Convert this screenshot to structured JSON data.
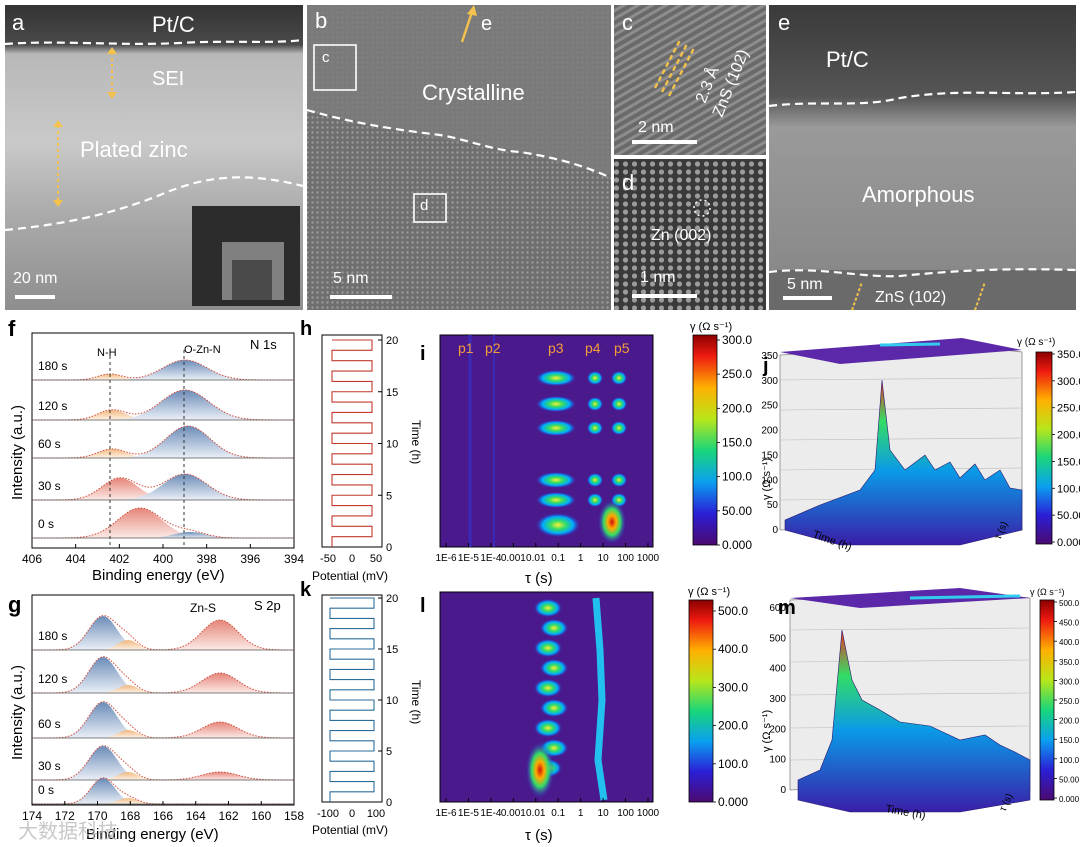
{
  "tem_panels": {
    "a": {
      "letter": "a",
      "pt": "Pt/C",
      "sei": "SEI",
      "plated": "Plated zinc",
      "scale": "20 nm"
    },
    "b": {
      "letter": "b",
      "box_c": "c",
      "box_d": "d",
      "arrow": "e",
      "crystalline": "Crystalline",
      "scale": "5 nm"
    },
    "c": {
      "letter": "c",
      "d_spacing": "2.3 Å",
      "plane": "ZnS (102)",
      "scale": "2 nm"
    },
    "d": {
      "letter": "d",
      "plane": "Zn (002)",
      "scale": "1 nm"
    },
    "e": {
      "letter": "e",
      "pt": "Pt/C",
      "amorphous": "Amorphous",
      "zns": "ZnS (102)",
      "scale": "5 nm"
    }
  },
  "panel_f": {
    "letter": "f",
    "region": "N 1s",
    "peak1": "N-H",
    "peak2": "O-Zn-N",
    "times": [
      "180 s",
      "120 s",
      "60 s",
      "30 s",
      "0 s"
    ],
    "xticks": [
      "406",
      "404",
      "402",
      "400",
      "398",
      "396",
      "394"
    ],
    "xlabel": "Binding energy (eV)",
    "ylabel": "Intensity (a.u.)"
  },
  "panel_g": {
    "letter": "g",
    "region": "S 2p",
    "peak": "Zn-S",
    "times": [
      "180 s",
      "120 s",
      "60 s",
      "30 s",
      "0 s"
    ],
    "xticks": [
      "174",
      "172",
      "170",
      "168",
      "166",
      "164",
      "162",
      "160",
      "158"
    ],
    "xlabel": "Binding energy (eV)",
    "ylabel": "Intensity (a.u.)"
  },
  "panel_h": {
    "letter": "h",
    "xticks": [
      "-50",
      "0",
      "50"
    ],
    "yticks": [
      "0",
      "5",
      "10",
      "15",
      "20"
    ],
    "xlabel": "Potential (mV)",
    "ylabel": "Time (h)",
    "color": "#c0392b"
  },
  "panel_k": {
    "letter": "k",
    "xticks": [
      "-100",
      "0",
      "100"
    ],
    "yticks": [
      "0",
      "5",
      "10",
      "15",
      "20"
    ],
    "xlabel": "Potential (mV)",
    "ylabel": "Time (h)",
    "color": "#2c6e9b"
  },
  "panel_i": {
    "letter": "i",
    "peaks": [
      "p1",
      "p2",
      "p3",
      "p4",
      "p5"
    ],
    "xticks": [
      "1E-6",
      "1E-5",
      "1E-4",
      "0.001",
      "0.01",
      "0.1",
      "1",
      "10",
      "100",
      "1000"
    ],
    "xlabel": "τ (s)",
    "cbar_title": "γ (Ω s⁻¹)",
    "cbar_ticks": [
      "300.0",
      "250.0",
      "200.0",
      "150.0",
      "100.0",
      "50.00",
      "0.000"
    ]
  },
  "panel_l": {
    "letter": "l",
    "xticks": [
      "1E-6",
      "1E-5",
      "1E-4",
      "0.001",
      "0.01",
      "0.1",
      "1",
      "10",
      "100",
      "1000"
    ],
    "xlabel": "τ (s)",
    "cbar_title": "γ (Ω s⁻¹)",
    "cbar_ticks": [
      "500.0",
      "400.0",
      "300.0",
      "200.0",
      "100.0",
      "0.000"
    ]
  },
  "panel_j": {
    "letter": "j",
    "zlabel": "γ (Ω s⁻¹)",
    "zticks": [
      "350",
      "300",
      "250",
      "200",
      "150",
      "100",
      "50",
      "0"
    ],
    "timelabel": "Time (h)",
    "taulabel": "τ (s)",
    "cbar_title": "γ (Ω s⁻¹)",
    "cbar_ticks": [
      "350.0",
      "300.0",
      "250.0",
      "200.0",
      "150.0",
      "100.0",
      "50.00",
      "0.000"
    ]
  },
  "panel_m": {
    "letter": "m",
    "zlabel": "γ (Ω s⁻¹)",
    "zticks": [
      "600",
      "500",
      "400",
      "300",
      "200",
      "100",
      "0"
    ],
    "timelabel": "Time (h)",
    "taulabel": "τ (s)",
    "cbar_title": "γ (Ω s⁻¹)",
    "cbar_ticks": [
      "500.0",
      "450.0",
      "400.0",
      "350.0",
      "300.0",
      "250.0",
      "200.0",
      "150.0",
      "100.0",
      "50.00",
      "0.000"
    ]
  },
  "watermark": "大数据科技"
}
